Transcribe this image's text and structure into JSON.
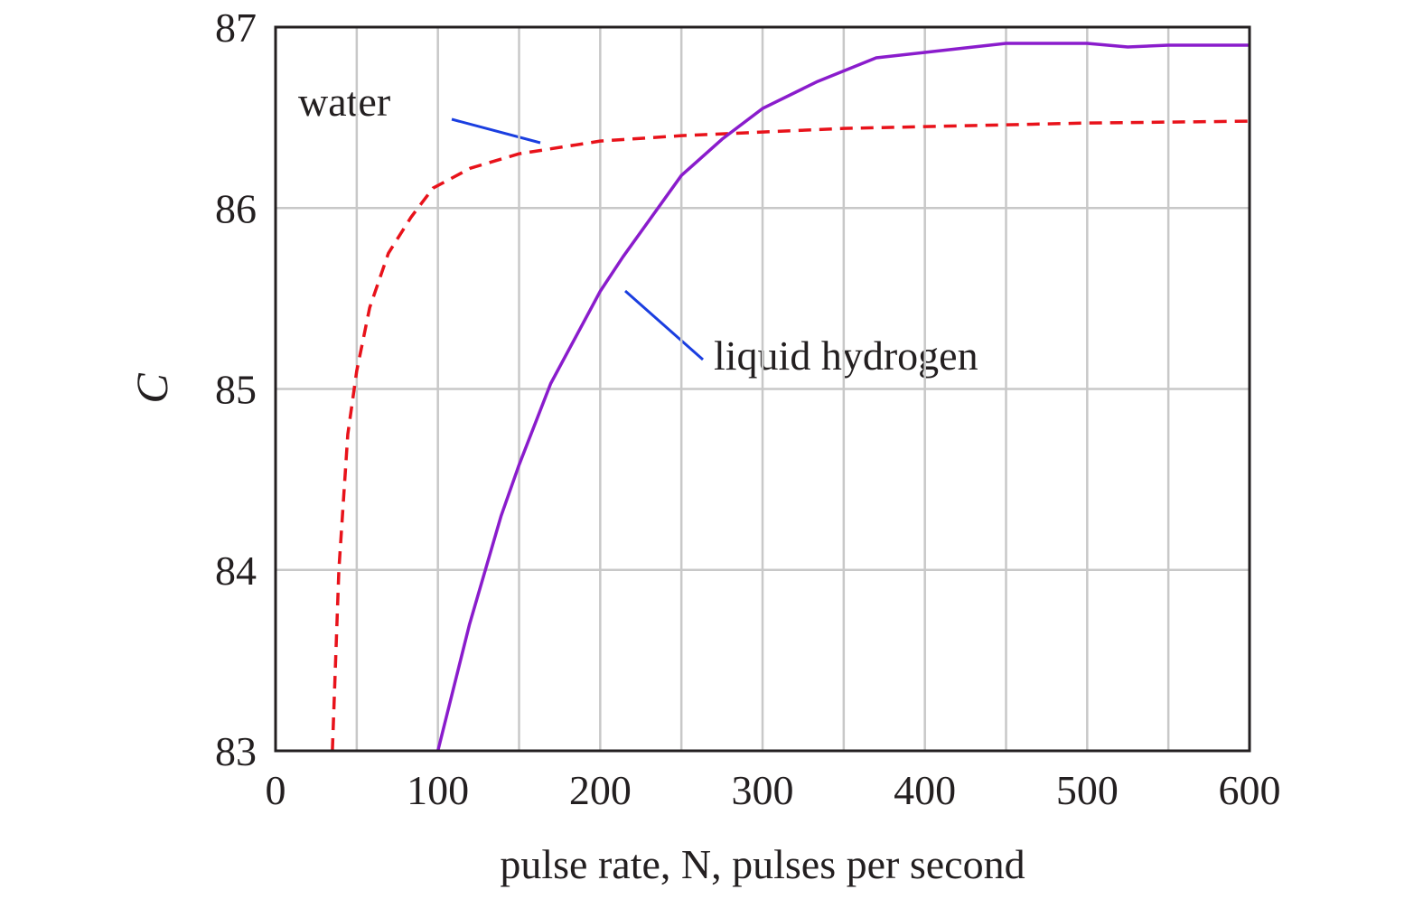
{
  "chart_data": {
    "type": "line",
    "xlabel": "pulse rate, N, pulses per second",
    "ylabel": "C",
    "xlim": [
      0,
      600
    ],
    "xticks": [
      0,
      100,
      200,
      300,
      400,
      500,
      600
    ],
    "x_minor_grid": [
      50,
      150,
      250,
      350,
      450,
      550
    ],
    "ylim": [
      83,
      87
    ],
    "yticks": [
      83,
      84,
      85,
      86,
      87
    ],
    "grid": true,
    "series": [
      {
        "name": "water",
        "color": "#e8121a",
        "dash": true,
        "x": [
          35,
          39,
          44.5,
          50,
          58,
          69.5,
          83.5,
          97,
          120,
          150,
          200,
          250,
          300,
          350,
          400,
          450,
          500,
          600
        ],
        "values": [
          83,
          84,
          84.75,
          85.1,
          85.45,
          85.75,
          85.95,
          86.11,
          86.22,
          86.3,
          86.37,
          86.4,
          86.42,
          86.44,
          86.45,
          86.46,
          86.47,
          86.48
        ]
      },
      {
        "name": "liquid hydrogen",
        "color": "#8a1ccc",
        "dash": false,
        "x": [
          100,
          119.5,
          139,
          150,
          169.5,
          200,
          214,
          250,
          275,
          300,
          334,
          370,
          400,
          450,
          500,
          525,
          550,
          600
        ],
        "values": [
          83,
          83.7,
          84.3,
          84.58,
          85.03,
          85.54,
          85.73,
          86.18,
          86.38,
          86.55,
          86.7,
          86.83,
          86.86,
          86.91,
          86.91,
          86.89,
          86.9,
          86.9
        ]
      }
    ]
  }
}
